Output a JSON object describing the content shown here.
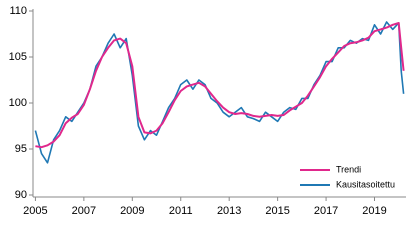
{
  "chart_data": {
    "type": "line",
    "x": [
      2005.0,
      2005.25,
      2005.5,
      2005.75,
      2006.0,
      2006.25,
      2006.5,
      2006.75,
      2007.0,
      2007.25,
      2007.5,
      2007.75,
      2008.0,
      2008.25,
      2008.5,
      2008.75,
      2009.0,
      2009.25,
      2009.5,
      2009.75,
      2010.0,
      2010.25,
      2010.5,
      2010.75,
      2011.0,
      2011.25,
      2011.5,
      2011.75,
      2012.0,
      2012.25,
      2012.5,
      2012.75,
      2013.0,
      2013.25,
      2013.5,
      2013.75,
      2014.0,
      2014.25,
      2014.5,
      2014.75,
      2015.0,
      2015.25,
      2015.5,
      2015.75,
      2016.0,
      2016.25,
      2016.5,
      2016.75,
      2017.0,
      2017.25,
      2017.5,
      2017.75,
      2018.0,
      2018.25,
      2018.5,
      2018.75,
      2019.0,
      2019.25,
      2019.5,
      2019.75,
      2020.0,
      2020.1,
      2020.2
    ],
    "series": [
      {
        "name": "Trendi",
        "color": "#e0288c",
        "values": [
          95.3,
          95.2,
          95.4,
          95.8,
          96.5,
          97.8,
          98.4,
          98.8,
          99.8,
          101.5,
          103.5,
          105.0,
          106.0,
          106.8,
          107.0,
          106.5,
          104.0,
          98.5,
          96.8,
          96.7,
          97.0,
          97.8,
          99.0,
          100.3,
          101.3,
          101.8,
          102.0,
          102.2,
          101.8,
          101.0,
          100.2,
          99.5,
          99.0,
          98.8,
          98.9,
          98.8,
          98.6,
          98.5,
          98.6,
          98.7,
          98.6,
          98.7,
          99.2,
          99.6,
          100.0,
          100.8,
          101.8,
          102.8,
          104.0,
          104.8,
          105.5,
          106.2,
          106.5,
          106.6,
          106.8,
          107.1,
          107.8,
          108.0,
          108.2,
          108.5,
          108.7,
          106.0,
          103.5
        ]
      },
      {
        "name": "Kausitasoitettu",
        "color": "#1f78b4",
        "values": [
          97.0,
          94.5,
          93.5,
          96.0,
          97.0,
          98.5,
          98.0,
          99.0,
          100.0,
          101.5,
          104.0,
          105.0,
          106.5,
          107.5,
          106.0,
          107.0,
          103.0,
          97.5,
          96.0,
          97.0,
          96.5,
          98.0,
          99.5,
          100.5,
          102.0,
          102.5,
          101.5,
          102.5,
          102.0,
          100.5,
          100.0,
          99.0,
          98.5,
          99.0,
          99.5,
          98.5,
          98.3,
          98.0,
          99.0,
          98.5,
          98.0,
          99.0,
          99.5,
          99.3,
          100.5,
          100.5,
          102.0,
          103.0,
          104.5,
          104.5,
          106.0,
          106.0,
          106.8,
          106.5,
          107.0,
          106.8,
          108.5,
          107.5,
          108.8,
          108.0,
          108.7,
          103.5,
          101.0
        ]
      }
    ],
    "xlim": [
      2004.9,
      2020.3
    ],
    "xticks": [
      2005,
      2007,
      2009,
      2011,
      2013,
      2015,
      2017,
      2019
    ],
    "ylim": [
      90,
      110
    ],
    "yticks": [
      90,
      95,
      100,
      105,
      110
    ],
    "legend": "lower right"
  }
}
